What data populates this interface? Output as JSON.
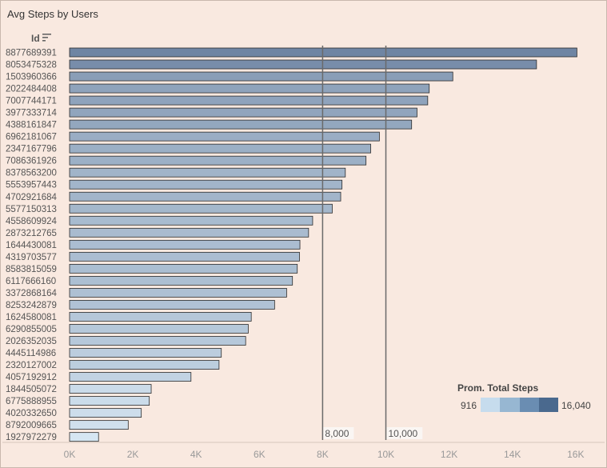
{
  "title": "Avg Steps by Users",
  "id_header": "Id",
  "legend": {
    "title": "Prom. Total Steps",
    "min_label": "916",
    "max_label": "16,040",
    "colors": [
      "#c6dced",
      "#97b7d2",
      "#6a8db2",
      "#4a698e"
    ]
  },
  "reference_lines": [
    {
      "value": 8000,
      "label": "8,000"
    },
    {
      "value": 10000,
      "label": "10,000"
    }
  ],
  "chart_data": {
    "type": "bar",
    "orientation": "horizontal",
    "title": "Avg Steps by Users",
    "xlabel": "",
    "ylabel": "Id",
    "xlim": [
      0,
      16500
    ],
    "xticks": [
      "0K",
      "2K",
      "4K",
      "6K",
      "8K",
      "10K",
      "12K",
      "14K",
      "16K"
    ],
    "xtick_values": [
      0,
      2000,
      4000,
      6000,
      8000,
      10000,
      12000,
      14000,
      16000
    ],
    "categories": [
      "8877689391",
      "8053475328",
      "1503960366",
      "2022484408",
      "7007744171",
      "3977333714",
      "4388161847",
      "6962181067",
      "2347167796",
      "7086361926",
      "8378563200",
      "5553957443",
      "4702921684",
      "5577150313",
      "4558609924",
      "2873212765",
      "1644430081",
      "4319703577",
      "8583815059",
      "6117666160",
      "3372868164",
      "8253242879",
      "1624580081",
      "6290855005",
      "2026352035",
      "4445114986",
      "2320127002",
      "4057192912",
      "1844505072",
      "6775888955",
      "4020332650",
      "8792009665",
      "1927972279"
    ],
    "values": [
      16040,
      14763,
      12117,
      11371,
      11323,
      10985,
      10814,
      9795,
      9520,
      9372,
      8718,
      8613,
      8572,
      8305,
      7685,
      7556,
      7283,
      7269,
      7199,
      7047,
      6862,
      6482,
      5744,
      5649,
      5567,
      4797,
      4725,
      3838,
      2580,
      2520,
      2267,
      1854,
      916
    ],
    "grid": false,
    "legend": "bottom-right"
  }
}
